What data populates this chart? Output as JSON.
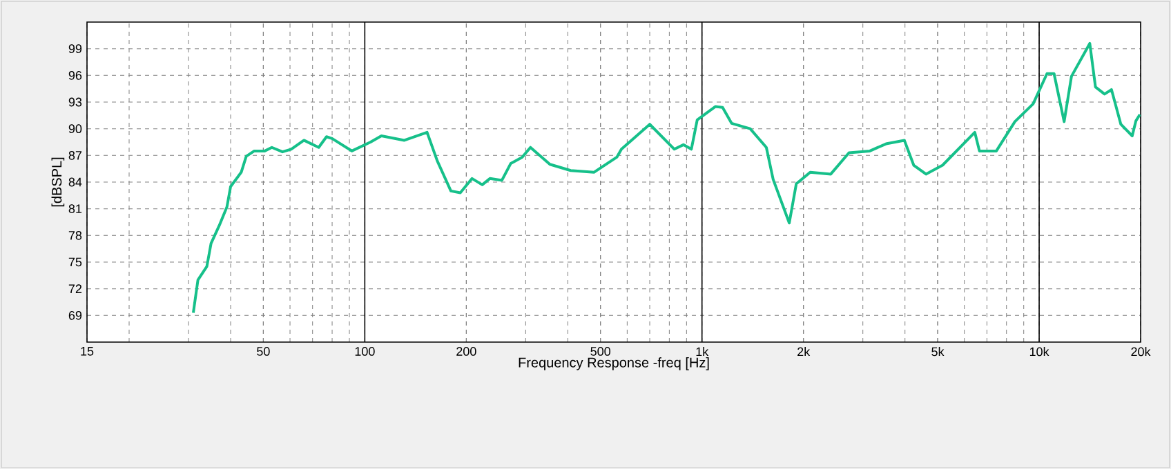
{
  "chart_data": {
    "type": "line",
    "xlabel": "Frequency Response -freq [Hz]",
    "ylabel": "[dBSPL]",
    "log": "x",
    "grid": true,
    "line_style": "solid",
    "marker": "none",
    "xlim": [
      15,
      20000
    ],
    "ylim": [
      66,
      102
    ],
    "xticks": [
      15,
      50,
      100,
      200,
      500,
      {
        "value": 1000,
        "label": "1k"
      },
      {
        "value": 2000,
        "label": "2k"
      },
      {
        "value": 5000,
        "label": "5k"
      },
      {
        "value": 10000,
        "label": "10k"
      },
      {
        "value": 20000,
        "label": "20k"
      }
    ],
    "yticks": [
      69,
      72,
      75,
      78,
      81,
      84,
      87,
      90,
      93,
      96,
      99
    ],
    "series": [
      {
        "color": "#16c08a",
        "x": [
          31,
          32,
          34,
          35,
          37,
          39,
          40,
          43,
          44.5,
          47,
          50.5,
          53,
          57,
          60.5,
          66,
          73,
          77,
          80,
          91.5,
          104,
          112,
          131,
          153,
          164,
          180,
          192,
          208,
          223,
          235,
          255,
          271,
          293,
          310,
          354,
          408,
          478,
          559,
          577,
          700,
          828,
          881,
          930,
          968,
          1097,
          1151,
          1225,
          1390,
          1552,
          1626,
          1815,
          1904,
          2094,
          2410,
          2729,
          3147,
          3515,
          3983,
          4246,
          4617,
          5172,
          6443,
          6651,
          7466,
          8472,
          9596,
          10550,
          11070,
          11860,
          12470,
          14130,
          14690,
          15630,
          16390,
          17470,
          18880,
          19370,
          19900
        ],
        "values": [
          69.3,
          73.0,
          74.5,
          77.1,
          79.1,
          81.2,
          83.5,
          85.1,
          86.9,
          87.5,
          87.5,
          87.9,
          87.4,
          87.7,
          88.7,
          87.9,
          89.1,
          88.9,
          87.5,
          88.5,
          89.2,
          88.7,
          89.6,
          86.4,
          83.0,
          82.8,
          84.4,
          83.7,
          84.4,
          84.2,
          86.1,
          86.8,
          87.9,
          86.0,
          85.3,
          85.1,
          86.8,
          87.7,
          90.5,
          87.7,
          88.2,
          87.7,
          91.0,
          92.5,
          92.4,
          90.6,
          90.0,
          87.9,
          84.3,
          79.4,
          83.8,
          85.1,
          84.9,
          87.3,
          87.5,
          88.3,
          88.7,
          85.9,
          84.9,
          85.9,
          89.6,
          87.5,
          87.5,
          90.8,
          92.8,
          96.2,
          96.2,
          90.8,
          95.9,
          99.6,
          94.7,
          93.9,
          94.4,
          90.5,
          89.2,
          90.9,
          91.6
        ]
      }
    ]
  }
}
